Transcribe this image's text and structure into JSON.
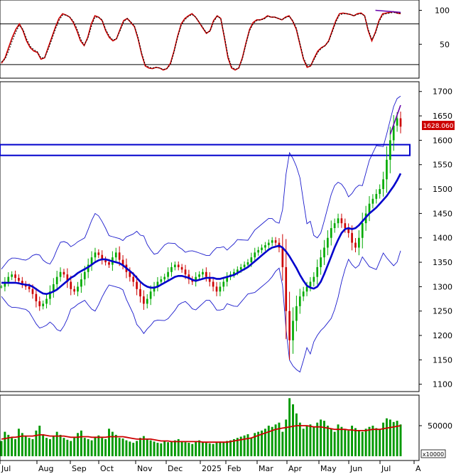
{
  "chart_data": [
    {
      "type": "line",
      "panel": "oscillator",
      "y_ticks": [
        50,
        100
      ],
      "ylim": [
        0,
        110
      ],
      "reference_lines": [
        20,
        80
      ],
      "series": [
        {
          "color": "#cc0000",
          "values": [
            22,
            30,
            45,
            60,
            72,
            80,
            70,
            55,
            45,
            40,
            38,
            28,
            30,
            45,
            60,
            75,
            88,
            95,
            93,
            90,
            82,
            70,
            55,
            48,
            60,
            80,
            92,
            90,
            85,
            70,
            60,
            55,
            58,
            72,
            85,
            88,
            82,
            76,
            58,
            35,
            18,
            15,
            14,
            16,
            15,
            12,
            14,
            22,
            40,
            62,
            80,
            88,
            92,
            95,
            90,
            82,
            74,
            66,
            70,
            85,
            92,
            88,
            60,
            30,
            15,
            12,
            15,
            30,
            52,
            72,
            82,
            86,
            86,
            88,
            92,
            90,
            90,
            88,
            86,
            90,
            92,
            84,
            72,
            50,
            28,
            16,
            18,
            30,
            40,
            45,
            48,
            55,
            70,
            85,
            95,
            96,
            95,
            94,
            92,
            95,
            96,
            92,
            70,
            55,
            68,
            85,
            95,
            96,
            97,
            98,
            96,
            95
          ]
        },
        {
          "color": "#000000",
          "dashed": true,
          "values": [
            24,
            28,
            40,
            55,
            68,
            78,
            72,
            58,
            47,
            42,
            39,
            30,
            30,
            42,
            57,
            72,
            85,
            93,
            93,
            90,
            84,
            73,
            58,
            49,
            58,
            76,
            90,
            90,
            86,
            72,
            62,
            56,
            58,
            70,
            83,
            88,
            83,
            77,
            60,
            37,
            20,
            16,
            15,
            16,
            15,
            13,
            14,
            20,
            38,
            60,
            78,
            86,
            91,
            94,
            90,
            83,
            75,
            67,
            69,
            83,
            91,
            88,
            62,
            33,
            17,
            13,
            15,
            28,
            50,
            70,
            80,
            85,
            86,
            87,
            91,
            90,
            90,
            88,
            86,
            89,
            91,
            85,
            74,
            52,
            30,
            18,
            18,
            28,
            38,
            44,
            48,
            54,
            68,
            83,
            93,
            95,
            95,
            94,
            92,
            94,
            95,
            92,
            72,
            57,
            66,
            83,
            93,
            95,
            96,
            97,
            96,
            96
          ]
        }
      ]
    },
    {
      "type": "candlestick",
      "panel": "price",
      "y_ticks": [
        1100,
        1150,
        1200,
        1250,
        1300,
        1350,
        1400,
        1450,
        1500,
        1550,
        1600,
        1650,
        1700
      ],
      "ylim": [
        1085,
        1720
      ],
      "last_price_label": "1628.060",
      "support_band": [
        1569,
        1591
      ],
      "series": [
        {
          "name": "close",
          "values": [
            1300,
            1310,
            1320,
            1325,
            1318,
            1312,
            1305,
            1300,
            1295,
            1285,
            1270,
            1260,
            1265,
            1275,
            1290,
            1305,
            1320,
            1330,
            1325,
            1310,
            1295,
            1290,
            1300,
            1315,
            1330,
            1345,
            1360,
            1370,
            1365,
            1355,
            1350,
            1345,
            1360,
            1370,
            1355,
            1345,
            1330,
            1320,
            1310,
            1295,
            1280,
            1265,
            1275,
            1290,
            1300,
            1310,
            1315,
            1320,
            1330,
            1340,
            1345,
            1340,
            1335,
            1325,
            1315,
            1310,
            1320,
            1325,
            1330,
            1320,
            1310,
            1300,
            1290,
            1300,
            1310,
            1320,
            1325,
            1330,
            1335,
            1340,
            1345,
            1350,
            1360,
            1370,
            1375,
            1380,
            1385,
            1390,
            1395,
            1390,
            1380,
            1340,
            1250,
            1190,
            1230,
            1260,
            1280,
            1290,
            1300,
            1310,
            1320,
            1340,
            1360,
            1380,
            1400,
            1420,
            1430,
            1440,
            1430,
            1420,
            1410,
            1390,
            1380,
            1400,
            1430,
            1450,
            1470,
            1480,
            1490,
            1500,
            1520,
            1560,
            1600,
            1630,
            1645,
            1628
          ]
        },
        {
          "name": "mid band",
          "color": "#0000cc",
          "values": [
            1308,
            1308,
            1308,
            1308,
            1308,
            1307,
            1305,
            1304,
            1303,
            1300,
            1295,
            1290,
            1286,
            1285,
            1287,
            1290,
            1294,
            1300,
            1306,
            1312,
            1318,
            1322,
            1328,
            1332,
            1336,
            1340,
            1345,
            1350,
            1354,
            1356,
            1356,
            1354,
            1352,
            1350,
            1348,
            1344,
            1338,
            1332,
            1326,
            1318,
            1310,
            1304,
            1300,
            1298,
            1298,
            1300,
            1304,
            1308,
            1312,
            1316,
            1320,
            1322,
            1322,
            1320,
            1318,
            1314,
            1312,
            1314,
            1316,
            1318,
            1318,
            1318,
            1316,
            1316,
            1318,
            1320,
            1322,
            1324,
            1328,
            1332,
            1336,
            1340,
            1346,
            1352,
            1358,
            1364,
            1370,
            1376,
            1380,
            1382,
            1384,
            1380,
            1372,
            1362,
            1350,
            1338,
            1324,
            1312,
            1302,
            1298,
            1296,
            1300,
            1310,
            1326,
            1344,
            1362,
            1380,
            1396,
            1410,
            1418,
            1420,
            1418,
            1420,
            1426,
            1434,
            1442,
            1450,
            1456,
            1462,
            1470,
            1478,
            1486,
            1496,
            1506,
            1518,
            1532
          ]
        }
      ]
    },
    {
      "type": "bar",
      "panel": "volume",
      "unit_label": "x10000",
      "y_ticks": [
        50000
      ],
      "ylim": [
        0,
        100000
      ],
      "series": [
        {
          "name": "volume",
          "color": "#009900",
          "values": [
            25000,
            40000,
            35000,
            30000,
            28000,
            45000,
            38000,
            32000,
            30000,
            28000,
            42000,
            50000,
            36000,
            30000,
            28000,
            33000,
            40000,
            35000,
            30000,
            27000,
            25000,
            30000,
            38000,
            42000,
            30000,
            28000,
            26000,
            32000,
            34000,
            30000,
            28000,
            45000,
            40000,
            35000,
            30000,
            29000,
            26000,
            24000,
            22000,
            25000,
            30000,
            33000,
            28000,
            26000,
            24000,
            22000,
            21000,
            25000,
            23000,
            24000,
            26000,
            28000,
            25000,
            23000,
            22000,
            20000,
            24000,
            26000,
            23000,
            22000,
            21000,
            20000,
            22000,
            24000,
            23000,
            25000,
            26000,
            28000,
            30000,
            32000,
            34000,
            36000,
            30000,
            38000,
            40000,
            42000,
            45000,
            50000,
            48000,
            52000,
            55000,
            40000,
            60000,
            95000,
            85000,
            70000,
            55000,
            45000,
            50000,
            52000,
            48000,
            55000,
            60000,
            58000,
            50000,
            45000,
            40000,
            52000,
            48000,
            44000,
            42000,
            50000,
            46000,
            42000,
            40000,
            45000,
            48000,
            50000,
            46000,
            44000,
            55000,
            62000,
            60000,
            56000,
            58000,
            52000
          ]
        },
        {
          "name": "volume average",
          "color": "#cc0000",
          "values": [
            28000,
            29000,
            30000,
            31000,
            31000,
            32000,
            33000,
            33000,
            33000,
            33000,
            34000,
            35000,
            35000,
            34000,
            33000,
            33000,
            33000,
            33000,
            33000,
            32000,
            31000,
            31000,
            31000,
            32000,
            32000,
            32000,
            31000,
            31000,
            31000,
            31000,
            31000,
            32000,
            32000,
            32000,
            32000,
            32000,
            31000,
            30000,
            29000,
            28000,
            28000,
            28000,
            28000,
            28000,
            27000,
            26000,
            25000,
            25000,
            25000,
            24000,
            24000,
            24000,
            24000,
            24000,
            24000,
            24000,
            24000,
            24000,
            23000,
            23000,
            23000,
            23000,
            23000,
            23000,
            23000,
            23000,
            24000,
            25000,
            26000,
            27000,
            28000,
            29000,
            30000,
            32000,
            34000,
            36000,
            38000,
            40000,
            42000,
            44000,
            45000,
            46000,
            47000,
            48000,
            49000,
            50000,
            50000,
            50000,
            50000,
            49000,
            48000,
            48000,
            48000,
            47000,
            46000,
            45000,
            44000,
            44000,
            44000,
            44000,
            43000,
            43000,
            42000,
            42000,
            42000,
            42000,
            43000,
            44000,
            44000,
            44000,
            45000,
            46000,
            47000,
            48000,
            49000,
            50000
          ]
        }
      ]
    },
    {
      "type": "axis",
      "panel": "time",
      "categories": [
        "Jul",
        "Aug",
        "Sep",
        "Oct",
        "Nov",
        "Dec",
        "2025",
        "Feb",
        "Mar",
        "Apr",
        "May",
        "Jun",
        "Jul",
        "A"
      ]
    }
  ]
}
